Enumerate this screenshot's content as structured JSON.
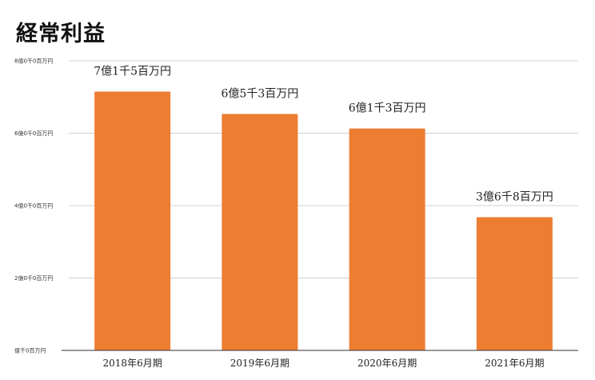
{
  "chart_data": {
    "type": "bar",
    "title": "経常利益",
    "categories": [
      "2018年6月期",
      "2019年6月期",
      "2020年6月期",
      "2021年6月期"
    ],
    "values": [
      715,
      653,
      613,
      368
    ],
    "value_unit": "百万円",
    "data_labels": [
      "7億1千5百万円",
      "6億5千3百万円",
      "6億1千3百万円",
      "3億6千8百万円"
    ],
    "y_ticks": [
      {
        "value": 0,
        "label": "億千0百万円"
      },
      {
        "value": 200,
        "label": "2億0千0百万円"
      },
      {
        "value": 400,
        "label": "4億0千0百万円"
      },
      {
        "value": 600,
        "label": "6億0千0百万円"
      },
      {
        "value": 800,
        "label": "8億0千0百万円"
      }
    ],
    "ylim": [
      0,
      800
    ],
    "grid": true,
    "bar_color": "#ED7D31",
    "xlabel": "",
    "ylabel": ""
  }
}
